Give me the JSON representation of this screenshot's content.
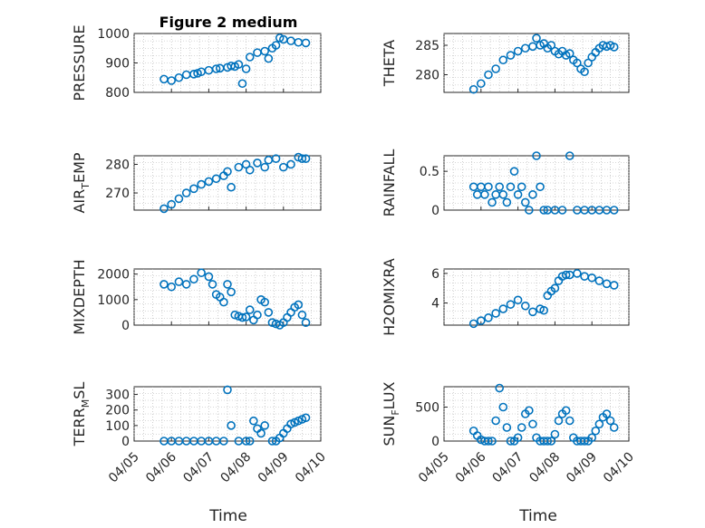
{
  "figure": {
    "title": "Figure 2 medium",
    "xlabel": "Time",
    "marker_color": "#0072BD"
  },
  "x_ticks": [
    "04/05",
    "04/06",
    "04/07",
    "04/08",
    "04/09",
    "04/10"
  ],
  "chart_data": [
    {
      "type": "scatter",
      "ylabel": "PRESSURE",
      "ylabel_sub": "",
      "ylabel_tail": "",
      "ylim": [
        800,
        1000
      ],
      "yticks": [
        800,
        900,
        1000
      ],
      "grid": true,
      "xrange_days": [
        0.8,
        4.6
      ],
      "series": [
        {
          "x": [
            0.8,
            1.0,
            1.2,
            1.4,
            1.6,
            1.7,
            1.8,
            2.0,
            2.2,
            2.3,
            2.5,
            2.6,
            2.7,
            2.8,
            2.9,
            3.0,
            3.1,
            3.3,
            3.5,
            3.6,
            3.7,
            3.8,
            3.9,
            4.0,
            4.2,
            4.4,
            4.6
          ],
          "y": [
            845,
            840,
            850,
            860,
            862,
            865,
            870,
            875,
            880,
            882,
            885,
            890,
            888,
            895,
            830,
            880,
            920,
            935,
            940,
            915,
            950,
            960,
            985,
            980,
            975,
            970,
            968
          ]
        }
      ]
    },
    {
      "type": "scatter",
      "ylabel": "THETA",
      "ylabel_sub": "",
      "ylabel_tail": "",
      "ylim": [
        277,
        287
      ],
      "yticks": [
        280,
        285
      ],
      "grid": true,
      "series": [
        {
          "x": [
            0.8,
            1.0,
            1.2,
            1.4,
            1.6,
            1.8,
            2.0,
            2.2,
            2.4,
            2.5,
            2.6,
            2.7,
            2.8,
            2.9,
            3.0,
            3.1,
            3.2,
            3.3,
            3.4,
            3.5,
            3.6,
            3.7,
            3.8,
            3.9,
            4.0,
            4.1,
            4.2,
            4.3,
            4.4,
            4.5,
            4.6
          ],
          "y": [
            277.5,
            278.5,
            280,
            281,
            282.5,
            283.3,
            284,
            284.5,
            284.8,
            286.2,
            285,
            285.3,
            284.5,
            285,
            284,
            283.5,
            284,
            283.3,
            283.6,
            282.5,
            282,
            281,
            280.5,
            282,
            283,
            283.8,
            284.5,
            285,
            284.8,
            285,
            284.7
          ]
        }
      ]
    },
    {
      "type": "scatter",
      "ylabel": "AIR",
      "ylabel_sub": "T",
      "ylabel_tail": "EMP",
      "ylim": [
        264,
        283
      ],
      "yticks": [
        270,
        280
      ],
      "grid": true,
      "series": [
        {
          "x": [
            0.8,
            1.0,
            1.2,
            1.4,
            1.6,
            1.8,
            2.0,
            2.2,
            2.4,
            2.5,
            2.6,
            2.8,
            3.0,
            3.1,
            3.3,
            3.5,
            3.6,
            3.8,
            4.0,
            4.2,
            4.4,
            4.5,
            4.6
          ],
          "y": [
            264.5,
            266,
            268,
            270,
            271.5,
            273,
            274,
            275,
            276,
            277.5,
            272,
            279,
            280,
            278,
            280.5,
            279,
            281.5,
            282,
            279,
            280,
            282.5,
            282,
            282
          ]
        }
      ]
    },
    {
      "type": "scatter",
      "ylabel": "RAINFALL",
      "ylabel_sub": "",
      "ylabel_tail": "",
      "ylim": [
        0,
        0.7
      ],
      "yticks": [
        0,
        0.5
      ],
      "grid": true,
      "series": [
        {
          "x": [
            0.8,
            0.9,
            1.0,
            1.1,
            1.2,
            1.3,
            1.4,
            1.5,
            1.6,
            1.7,
            1.8,
            1.9,
            2.0,
            2.1,
            2.2,
            2.3,
            2.4,
            2.5,
            2.6,
            2.7,
            2.8,
            3.0,
            3.2,
            3.4,
            3.6,
            3.8,
            4.0,
            4.2,
            4.4,
            4.6
          ],
          "y": [
            0.3,
            0.2,
            0.3,
            0.2,
            0.3,
            0.1,
            0.2,
            0.3,
            0.2,
            0.1,
            0.3,
            0.5,
            0.2,
            0.3,
            0.1,
            0,
            0.2,
            0.7,
            0.3,
            0,
            0,
            0,
            0,
            0.7,
            0,
            0,
            0,
            0,
            0,
            0
          ]
        }
      ]
    },
    {
      "type": "scatter",
      "ylabel": "MIXDEPTH",
      "ylabel_sub": "",
      "ylabel_tail": "",
      "ylim": [
        0,
        2200
      ],
      "yticks": [
        0,
        1000,
        2000
      ],
      "grid": true,
      "series": [
        {
          "x": [
            0.8,
            1.0,
            1.2,
            1.4,
            1.6,
            1.8,
            2.0,
            2.1,
            2.2,
            2.3,
            2.4,
            2.5,
            2.6,
            2.7,
            2.8,
            2.9,
            3.0,
            3.1,
            3.2,
            3.3,
            3.4,
            3.5,
            3.6,
            3.7,
            3.8,
            3.9,
            4.0,
            4.1,
            4.2,
            4.3,
            4.4,
            4.5,
            4.6
          ],
          "y": [
            1600,
            1500,
            1700,
            1600,
            1800,
            2050,
            1900,
            1600,
            1200,
            1100,
            900,
            1600,
            1300,
            400,
            350,
            300,
            320,
            600,
            200,
            400,
            1000,
            900,
            500,
            100,
            50,
            0,
            100,
            300,
            500,
            700,
            800,
            400,
            100
          ]
        }
      ]
    },
    {
      "type": "scatter",
      "ylabel": "H2OMIXRA",
      "ylabel_sub": "",
      "ylabel_tail": "",
      "ylim": [
        2.5,
        6.3
      ],
      "yticks": [
        4,
        6
      ],
      "grid": true,
      "series": [
        {
          "x": [
            0.8,
            1.0,
            1.2,
            1.4,
            1.6,
            1.8,
            2.0,
            2.2,
            2.4,
            2.6,
            2.7,
            2.8,
            2.9,
            3.0,
            3.1,
            3.2,
            3.3,
            3.4,
            3.6,
            3.8,
            4.0,
            4.2,
            4.4,
            4.6
          ],
          "y": [
            2.6,
            2.8,
            3.0,
            3.3,
            3.6,
            3.9,
            4.2,
            3.8,
            3.4,
            3.6,
            3.5,
            4.5,
            4.8,
            5.0,
            5.5,
            5.8,
            5.9,
            5.9,
            6.0,
            5.8,
            5.7,
            5.5,
            5.3,
            5.2
          ]
        }
      ]
    },
    {
      "type": "scatter",
      "ylabel": "TERR",
      "ylabel_sub": "M",
      "ylabel_tail": "SL",
      "ylim": [
        0,
        350
      ],
      "yticks": [
        0,
        100,
        200,
        300
      ],
      "grid": true,
      "series": [
        {
          "x": [
            0.8,
            1.0,
            1.2,
            1.4,
            1.6,
            1.8,
            2.0,
            2.2,
            2.4,
            2.5,
            2.6,
            2.8,
            3.0,
            3.1,
            3.2,
            3.3,
            3.4,
            3.5,
            3.7,
            3.8,
            3.9,
            4.0,
            4.1,
            4.2,
            4.3,
            4.4,
            4.5,
            4.6
          ],
          "y": [
            0,
            0,
            0,
            0,
            0,
            0,
            0,
            0,
            0,
            330,
            100,
            0,
            0,
            0,
            130,
            80,
            50,
            100,
            0,
            0,
            20,
            50,
            80,
            110,
            120,
            130,
            140,
            150
          ]
        }
      ]
    },
    {
      "type": "scatter",
      "ylabel": "SUN",
      "ylabel_sub": "F",
      "ylabel_tail": "LUX",
      "ylim": [
        0,
        800
      ],
      "yticks": [
        0,
        500
      ],
      "grid": true,
      "series": [
        {
          "x": [
            0.8,
            0.9,
            1.0,
            1.1,
            1.2,
            1.3,
            1.4,
            1.5,
            1.6,
            1.7,
            1.8,
            1.9,
            2.0,
            2.1,
            2.2,
            2.3,
            2.4,
            2.5,
            2.6,
            2.7,
            2.8,
            2.9,
            3.0,
            3.1,
            3.2,
            3.3,
            3.4,
            3.5,
            3.6,
            3.7,
            3.8,
            3.9,
            4.0,
            4.1,
            4.2,
            4.3,
            4.4,
            4.5,
            4.6
          ],
          "y": [
            150,
            80,
            20,
            0,
            0,
            0,
            300,
            780,
            500,
            200,
            0,
            0,
            50,
            200,
            400,
            450,
            250,
            50,
            0,
            0,
            0,
            0,
            100,
            300,
            400,
            450,
            300,
            50,
            0,
            0,
            0,
            0,
            50,
            150,
            250,
            350,
            400,
            300,
            200
          ]
        }
      ]
    }
  ]
}
